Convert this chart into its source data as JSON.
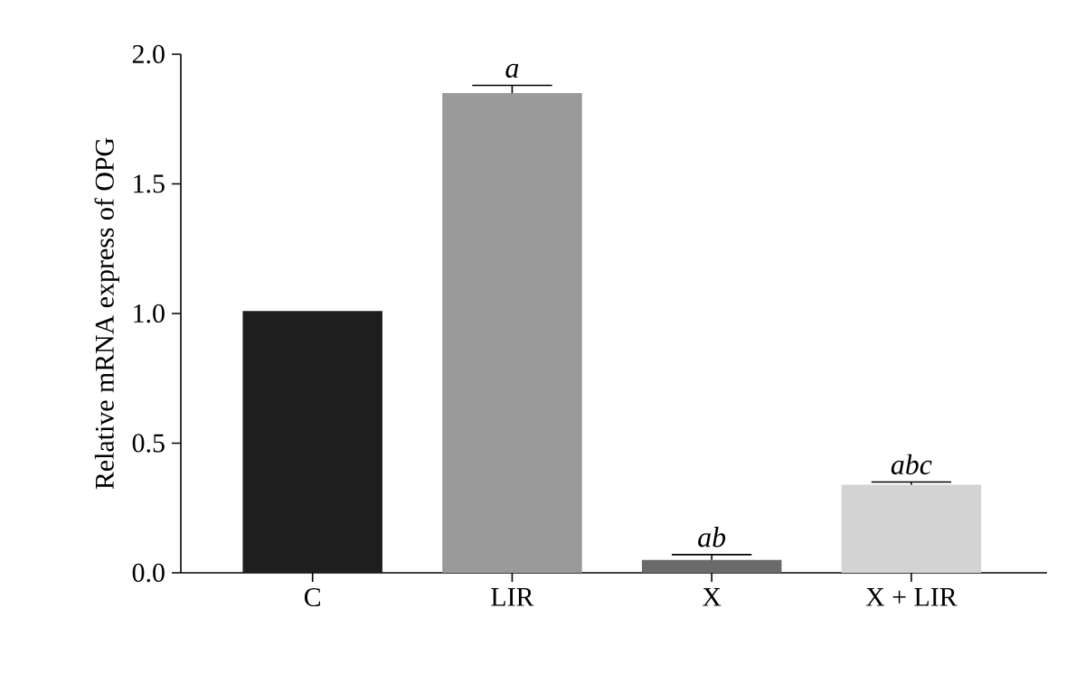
{
  "chart_data": {
    "type": "bar",
    "ylabel": "Relative mRNA express of OPG",
    "categories": [
      "C",
      "LIR",
      "X",
      "X + LIR"
    ],
    "values": [
      1.01,
      1.85,
      0.05,
      0.34
    ],
    "colors": [
      "#1e1e1e",
      "#9a9a9a",
      "#6a6a6a",
      "#d3d3d3"
    ],
    "errors": [
      null,
      0.03,
      0.02,
      0.01
    ],
    "ylim": [
      0,
      2.0
    ],
    "yticks": [
      {
        "value": 0,
        "label": "0.0"
      },
      {
        "value": 0.5,
        "label": "0.5"
      },
      {
        "value": 1.0,
        "label": "1.0"
      },
      {
        "value": 1.5,
        "label": "1.5"
      },
      {
        "value": 2.0,
        "label": "2.0"
      }
    ],
    "annotations": [
      {
        "text": "a",
        "x": "LIR",
        "y": 1.88
      },
      {
        "text": "ab",
        "x": "X",
        "y": 0.07
      },
      {
        "text": "abc",
        "x": "X + LIR",
        "y": 0.35
      }
    ],
    "grid": false
  }
}
